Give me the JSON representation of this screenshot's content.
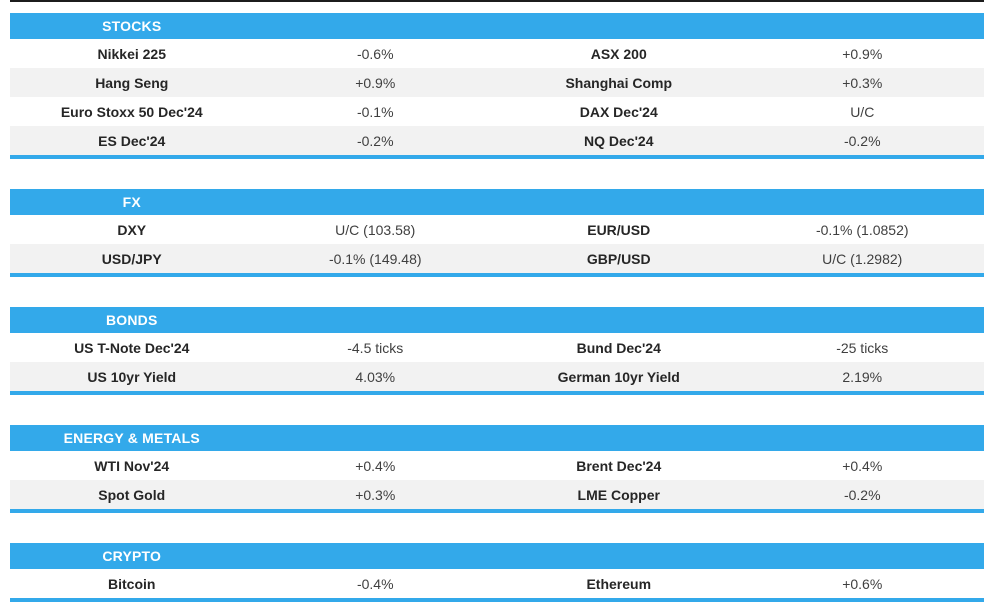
{
  "colors": {
    "accent": "#33a9ea",
    "row_alt": "#f2f2f2",
    "header_text": "#ffffff",
    "label_text": "#262626",
    "value_text": "#3f3f3f",
    "top_rule": "#1c1c1c"
  },
  "sections": [
    {
      "title": "STOCKS",
      "rows": [
        [
          "Nikkei 225",
          "-0.6%",
          "ASX 200",
          "+0.9%"
        ],
        [
          "Hang Seng",
          "+0.9%",
          "Shanghai Comp",
          "+0.3%"
        ],
        [
          "Euro Stoxx 50 Dec'24",
          "-0.1%",
          "DAX Dec'24",
          "U/C"
        ],
        [
          "ES Dec'24",
          "-0.2%",
          "NQ Dec'24",
          "-0.2%"
        ]
      ]
    },
    {
      "title": "FX",
      "rows": [
        [
          "DXY",
          "U/C (103.58)",
          "EUR/USD",
          "-0.1% (1.0852)"
        ],
        [
          "USD/JPY",
          "-0.1% (149.48)",
          "GBP/USD",
          "U/C (1.2982)"
        ]
      ]
    },
    {
      "title": "BONDS",
      "rows": [
        [
          "US T-Note Dec'24",
          "-4.5 ticks",
          "Bund Dec'24",
          "-25 ticks"
        ],
        [
          "US 10yr Yield",
          "4.03%",
          "German 10yr Yield",
          "2.19%"
        ]
      ]
    },
    {
      "title": "ENERGY & METALS",
      "rows": [
        [
          "WTI Nov'24",
          "+0.4%",
          "Brent Dec'24",
          "+0.4%"
        ],
        [
          "Spot Gold",
          "+0.3%",
          "LME Copper",
          "-0.2%"
        ]
      ]
    },
    {
      "title": "CRYPTO",
      "rows": [
        [
          "Bitcoin",
          "-0.4%",
          "Ethereum",
          "+0.6%"
        ]
      ]
    }
  ]
}
